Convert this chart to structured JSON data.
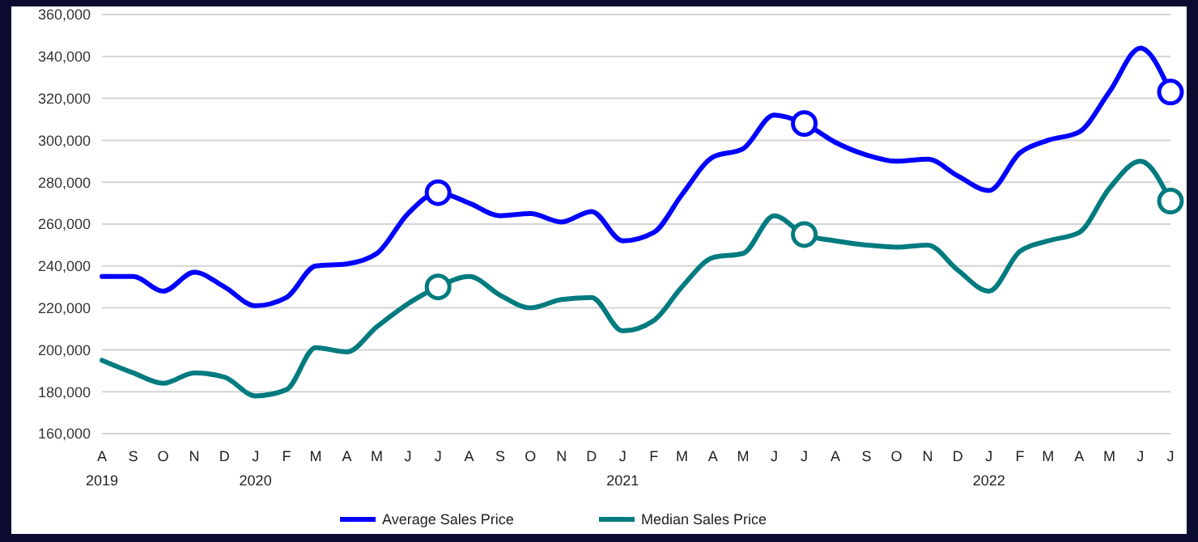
{
  "chart_data": {
    "type": "line",
    "x": [
      "2019-08",
      "2019-09",
      "2019-10",
      "2019-11",
      "2019-12",
      "2020-01",
      "2020-02",
      "2020-03",
      "2020-04",
      "2020-05",
      "2020-06",
      "2020-07",
      "2020-08",
      "2020-09",
      "2020-10",
      "2020-11",
      "2020-12",
      "2021-01",
      "2021-02",
      "2021-03",
      "2021-04",
      "2021-05",
      "2021-06",
      "2021-07",
      "2021-08",
      "2021-09",
      "2021-10",
      "2021-11",
      "2021-12",
      "2022-01",
      "2022-02",
      "2022-03",
      "2022-04",
      "2022-05",
      "2022-06",
      "2022-07"
    ],
    "series": [
      {
        "name": "Average Sales Price",
        "color": "#0000ff",
        "values": [
          235000,
          235000,
          228000,
          237000,
          230000,
          221000,
          225000,
          240000,
          241000,
          246000,
          265000,
          275000,
          270000,
          264000,
          265000,
          261000,
          266000,
          252000,
          256000,
          274000,
          292000,
          296000,
          312000,
          308000,
          299000,
          293000,
          290000,
          291000,
          283000,
          276000,
          294000,
          300000,
          304000,
          323000,
          344000,
          323000
        ]
      },
      {
        "name": "Median Sales Price",
        "color": "#007b7f",
        "values": [
          195000,
          189000,
          184000,
          189000,
          187000,
          178000,
          181000,
          201000,
          199000,
          211000,
          222000,
          230000,
          235000,
          226000,
          220000,
          224000,
          225000,
          209000,
          214000,
          230000,
          244000,
          246000,
          264000,
          255000,
          252000,
          250000,
          249000,
          250000,
          238000,
          228000,
          247000,
          252000,
          256000,
          277000,
          290000,
          271000
        ]
      },
      {
        "type": "scatter",
        "marker": "circle",
        "color": "#0000ff",
        "x": [
          "2020-07",
          "2021-07",
          "2022-07"
        ],
        "values": [
          275000,
          308000,
          323000
        ]
      },
      {
        "type": "scatter",
        "marker": "circle",
        "color": "#007b7f",
        "x": [
          "2020-07",
          "2021-07",
          "2022-07"
        ],
        "values": [
          230000,
          255000,
          271000
        ]
      }
    ],
    "xlim": [
      "2019-08",
      "2022-07"
    ],
    "xticks": [
      {
        "value": "2019-08",
        "label": "A\n2019"
      },
      {
        "value": "2019-09",
        "label": "S"
      },
      {
        "value": "2019-10",
        "label": "O"
      },
      {
        "value": "2019-11",
        "label": "N"
      },
      {
        "value": "2019-12",
        "label": "D"
      },
      {
        "value": "2020-01",
        "label": "J\n2020"
      },
      {
        "value": "2020-02",
        "label": "F"
      },
      {
        "value": "2020-03",
        "label": "M"
      },
      {
        "value": "2020-04",
        "label": "A"
      },
      {
        "value": "2020-05",
        "label": "M"
      },
      {
        "value": "2020-06",
        "label": "J"
      },
      {
        "value": "2020-07",
        "label": "J"
      },
      {
        "value": "2020-08",
        "label": "A"
      },
      {
        "value": "2020-09",
        "label": "S"
      },
      {
        "value": "2020-10",
        "label": "O"
      },
      {
        "value": "2020-11",
        "label": "N"
      },
      {
        "value": "2020-12",
        "label": "D"
      },
      {
        "value": "2021-01",
        "label": "J\n2021"
      },
      {
        "value": "2021-02",
        "label": "F"
      },
      {
        "value": "2021-03",
        "label": "M"
      },
      {
        "value": "2021-04",
        "label": "A"
      },
      {
        "value": "2021-05",
        "label": "M"
      },
      {
        "value": "2021-06",
        "label": "J"
      },
      {
        "value": "2021-07",
        "label": "J"
      },
      {
        "value": "2021-08",
        "label": "A"
      },
      {
        "value": "2021-09",
        "label": "S"
      },
      {
        "value": "2021-10",
        "label": "O"
      },
      {
        "value": "2021-11",
        "label": "N"
      },
      {
        "value": "2021-12",
        "label": "D"
      },
      {
        "value": "2022-01",
        "label": "J\n2022"
      },
      {
        "value": "2022-02",
        "label": "F"
      },
      {
        "value": "2022-03",
        "label": "M"
      },
      {
        "value": "2022-04",
        "label": "A"
      },
      {
        "value": "2022-05",
        "label": "M"
      },
      {
        "value": "2022-06",
        "label": "J"
      },
      {
        "value": "2022-07",
        "label": "J"
      }
    ],
    "ylim": [
      160000,
      360000
    ],
    "yticks": [
      {
        "value": 160000,
        "label": "160,000"
      },
      {
        "value": 180000,
        "label": "180,000"
      },
      {
        "value": 200000,
        "label": "200,000"
      },
      {
        "value": 220000,
        "label": "220,000"
      },
      {
        "value": 240000,
        "label": "240,000"
      },
      {
        "value": 260000,
        "label": "260,000"
      },
      {
        "value": 280000,
        "label": "280,000"
      },
      {
        "value": 300000,
        "label": "300,000"
      },
      {
        "value": 320000,
        "label": "320,000"
      },
      {
        "value": 340000,
        "label": "340,000"
      },
      {
        "value": 360000,
        "label": "360,000"
      }
    ],
    "grid": "y",
    "legend": "bottom",
    "line_style": "solid"
  }
}
